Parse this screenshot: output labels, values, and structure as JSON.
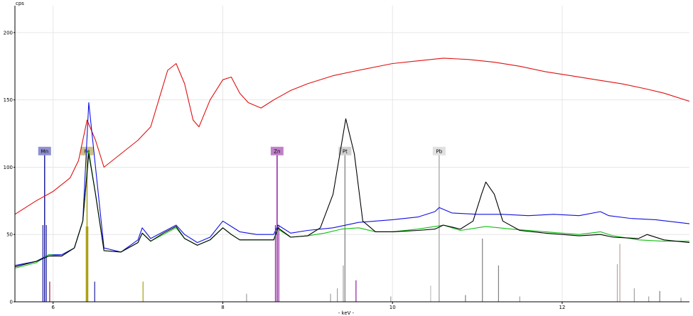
{
  "chart_data": {
    "type": "line",
    "title": "",
    "ylabel": "cps",
    "xlabel": "- keV -",
    "xlim": [
      5.55,
      13.5
    ],
    "ylim": [
      0,
      220
    ],
    "x_ticks": [
      6,
      8,
      10,
      12
    ],
    "y_ticks": [
      0,
      50,
      100,
      150,
      200
    ],
    "grid": true,
    "series": [
      {
        "color": "#e01010",
        "points": [
          [
            5.55,
            65
          ],
          [
            5.8,
            75
          ],
          [
            6.0,
            82
          ],
          [
            6.2,
            92
          ],
          [
            6.3,
            105
          ],
          [
            6.4,
            135
          ],
          [
            6.5,
            120
          ],
          [
            6.6,
            100
          ],
          [
            6.8,
            110
          ],
          [
            7.0,
            120
          ],
          [
            7.15,
            130
          ],
          [
            7.35,
            172
          ],
          [
            7.45,
            177
          ],
          [
            7.55,
            162
          ],
          [
            7.65,
            135
          ],
          [
            7.72,
            130
          ],
          [
            7.85,
            150
          ],
          [
            8.0,
            165
          ],
          [
            8.1,
            167
          ],
          [
            8.2,
            155
          ],
          [
            8.3,
            148
          ],
          [
            8.45,
            144
          ],
          [
            8.6,
            150
          ],
          [
            8.8,
            157
          ],
          [
            9.0,
            162
          ],
          [
            9.3,
            168
          ],
          [
            9.6,
            172
          ],
          [
            10.0,
            177
          ],
          [
            10.3,
            179
          ],
          [
            10.6,
            181
          ],
          [
            10.9,
            180
          ],
          [
            11.2,
            178
          ],
          [
            11.5,
            175
          ],
          [
            11.8,
            171
          ],
          [
            12.1,
            168
          ],
          [
            12.4,
            165
          ],
          [
            12.7,
            162
          ],
          [
            13.0,
            158
          ],
          [
            13.2,
            155
          ],
          [
            13.5,
            149
          ]
        ]
      },
      {
        "color": "#1010e0",
        "points": [
          [
            5.55,
            27
          ],
          [
            5.8,
            30
          ],
          [
            5.95,
            35
          ],
          [
            6.1,
            35
          ],
          [
            6.25,
            40
          ],
          [
            6.35,
            60
          ],
          [
            6.42,
            148
          ],
          [
            6.5,
            100
          ],
          [
            6.6,
            40
          ],
          [
            6.8,
            37
          ],
          [
            7.0,
            46
          ],
          [
            7.05,
            55
          ],
          [
            7.15,
            47
          ],
          [
            7.3,
            52
          ],
          [
            7.45,
            57
          ],
          [
            7.55,
            50
          ],
          [
            7.7,
            44
          ],
          [
            7.85,
            48
          ],
          [
            8.0,
            60
          ],
          [
            8.1,
            56
          ],
          [
            8.2,
            52
          ],
          [
            8.4,
            50
          ],
          [
            8.6,
            50
          ],
          [
            8.65,
            57
          ],
          [
            8.8,
            51
          ],
          [
            9.0,
            53
          ],
          [
            9.3,
            55
          ],
          [
            9.6,
            59
          ],
          [
            10.0,
            61
          ],
          [
            10.3,
            63
          ],
          [
            10.5,
            67
          ],
          [
            10.55,
            70
          ],
          [
            10.7,
            66
          ],
          [
            11.0,
            65
          ],
          [
            11.3,
            65
          ],
          [
            11.6,
            64
          ],
          [
            11.9,
            65
          ],
          [
            12.2,
            64
          ],
          [
            12.45,
            67
          ],
          [
            12.55,
            64
          ],
          [
            12.8,
            62
          ],
          [
            13.1,
            61
          ],
          [
            13.5,
            58
          ]
        ]
      },
      {
        "color": "#10c010",
        "points": [
          [
            5.55,
            25
          ],
          [
            5.8,
            29
          ],
          [
            5.95,
            35
          ],
          [
            6.1,
            34
          ],
          [
            6.25,
            40
          ],
          [
            6.35,
            60
          ],
          [
            6.42,
            112
          ],
          [
            6.5,
            80
          ],
          [
            6.6,
            38
          ],
          [
            6.8,
            37
          ],
          [
            7.0,
            44
          ],
          [
            7.05,
            51
          ],
          [
            7.15,
            45
          ],
          [
            7.3,
            50
          ],
          [
            7.45,
            55
          ],
          [
            7.55,
            47
          ],
          [
            7.7,
            42
          ],
          [
            7.85,
            46
          ],
          [
            8.0,
            55
          ],
          [
            8.1,
            50
          ],
          [
            8.2,
            46
          ],
          [
            8.4,
            46
          ],
          [
            8.6,
            46
          ],
          [
            8.65,
            54
          ],
          [
            8.8,
            48
          ],
          [
            9.0,
            49
          ],
          [
            9.2,
            51
          ],
          [
            9.4,
            54
          ],
          [
            9.6,
            55
          ],
          [
            9.8,
            52
          ],
          [
            10.0,
            52
          ],
          [
            10.3,
            54
          ],
          [
            10.5,
            56
          ],
          [
            10.6,
            57
          ],
          [
            10.8,
            53
          ],
          [
            11.0,
            55
          ],
          [
            11.1,
            56
          ],
          [
            11.4,
            54
          ],
          [
            11.8,
            52
          ],
          [
            12.2,
            50
          ],
          [
            12.45,
            52
          ],
          [
            12.6,
            49
          ],
          [
            12.9,
            46
          ],
          [
            13.2,
            45
          ],
          [
            13.5,
            45
          ]
        ]
      },
      {
        "color": "#000000",
        "points": [
          [
            5.55,
            26
          ],
          [
            5.8,
            30
          ],
          [
            5.95,
            34
          ],
          [
            6.1,
            34
          ],
          [
            6.25,
            40
          ],
          [
            6.35,
            60
          ],
          [
            6.42,
            110
          ],
          [
            6.5,
            80
          ],
          [
            6.6,
            38
          ],
          [
            6.8,
            37
          ],
          [
            7.0,
            44
          ],
          [
            7.05,
            51
          ],
          [
            7.15,
            45
          ],
          [
            7.3,
            51
          ],
          [
            7.45,
            56
          ],
          [
            7.55,
            47
          ],
          [
            7.7,
            42
          ],
          [
            7.85,
            46
          ],
          [
            8.0,
            55
          ],
          [
            8.1,
            50
          ],
          [
            8.2,
            46
          ],
          [
            8.4,
            46
          ],
          [
            8.6,
            46
          ],
          [
            8.65,
            55
          ],
          [
            8.8,
            48
          ],
          [
            9.0,
            49
          ],
          [
            9.15,
            55
          ],
          [
            9.3,
            80
          ],
          [
            9.45,
            136
          ],
          [
            9.55,
            110
          ],
          [
            9.65,
            60
          ],
          [
            9.8,
            52
          ],
          [
            10.0,
            52
          ],
          [
            10.3,
            53
          ],
          [
            10.5,
            54
          ],
          [
            10.6,
            57
          ],
          [
            10.8,
            54
          ],
          [
            10.95,
            60
          ],
          [
            11.05,
            80
          ],
          [
            11.1,
            89
          ],
          [
            11.2,
            80
          ],
          [
            11.3,
            60
          ],
          [
            11.5,
            53
          ],
          [
            11.8,
            51
          ],
          [
            12.2,
            49
          ],
          [
            12.45,
            50
          ],
          [
            12.6,
            48
          ],
          [
            12.9,
            47
          ],
          [
            13.0,
            50
          ],
          [
            13.2,
            46
          ],
          [
            13.5,
            44
          ]
        ]
      }
    ],
    "element_markers": [
      {
        "label": "Mn",
        "x": 5.9,
        "height": 112,
        "line_color": "#1f1f9f",
        "tag_bg": "#8f8fd0"
      },
      {
        "label": "Fe",
        "x": 6.4,
        "height": 112,
        "line_color": "#a8a010",
        "tag_bg": "#c8c08a"
      },
      {
        "label": "Zn",
        "x": 8.64,
        "height": 112,
        "line_color": "#8f1f9f",
        "tag_bg": "#c080c8"
      },
      {
        "label": "Pt",
        "x": 9.44,
        "height": 112,
        "line_color": "#909090",
        "tag_bg": "#d0d0d0"
      },
      {
        "label": "Pb",
        "x": 10.55,
        "height": 112,
        "line_color": "#b0b0b0",
        "tag_bg": "#e0e0e0"
      }
    ],
    "peak_lines": [
      {
        "x": 5.88,
        "h": 57,
        "c": "#1f1f9f"
      },
      {
        "x": 5.92,
        "h": 57,
        "c": "#1f1f9f"
      },
      {
        "x": 5.96,
        "h": 15,
        "c": "#a01040"
      },
      {
        "x": 6.39,
        "h": 56,
        "c": "#a8a010"
      },
      {
        "x": 6.41,
        "h": 56,
        "c": "#a8a010"
      },
      {
        "x": 6.49,
        "h": 15,
        "c": "#1f1f9f"
      },
      {
        "x": 7.06,
        "h": 15,
        "c": "#a8a010"
      },
      {
        "x": 8.28,
        "h": 6,
        "c": "#a0a0a0"
      },
      {
        "x": 8.62,
        "h": 57,
        "c": "#8f1f9f"
      },
      {
        "x": 8.66,
        "h": 57,
        "c": "#8f1f9f"
      },
      {
        "x": 9.27,
        "h": 6,
        "c": "#a0a0a0"
      },
      {
        "x": 9.35,
        "h": 10,
        "c": "#a0a0a0"
      },
      {
        "x": 9.42,
        "h": 27,
        "c": "#a0a0a0"
      },
      {
        "x": 9.57,
        "h": 16,
        "c": "#8f1f9f"
      },
      {
        "x": 9.98,
        "h": 4,
        "c": "#a0a0a0"
      },
      {
        "x": 10.45,
        "h": 12,
        "c": "#c0c0c0"
      },
      {
        "x": 10.55,
        "h": 18,
        "c": "#c0c0c0"
      },
      {
        "x": 10.86,
        "h": 5,
        "c": "#808080"
      },
      {
        "x": 11.06,
        "h": 47,
        "c": "#808080"
      },
      {
        "x": 11.25,
        "h": 27,
        "c": "#808080"
      },
      {
        "x": 11.5,
        "h": 4,
        "c": "#a0a0a0"
      },
      {
        "x": 12.65,
        "h": 28,
        "c": "#c0a0a0"
      },
      {
        "x": 12.68,
        "h": 43,
        "c": "#c0a0a0"
      },
      {
        "x": 12.85,
        "h": 10,
        "c": "#a0a0a0"
      },
      {
        "x": 13.02,
        "h": 4,
        "c": "#a0a0a0"
      },
      {
        "x": 13.15,
        "h": 8,
        "c": "#808080"
      },
      {
        "x": 13.4,
        "h": 3,
        "c": "#a0a0a0"
      }
    ]
  }
}
